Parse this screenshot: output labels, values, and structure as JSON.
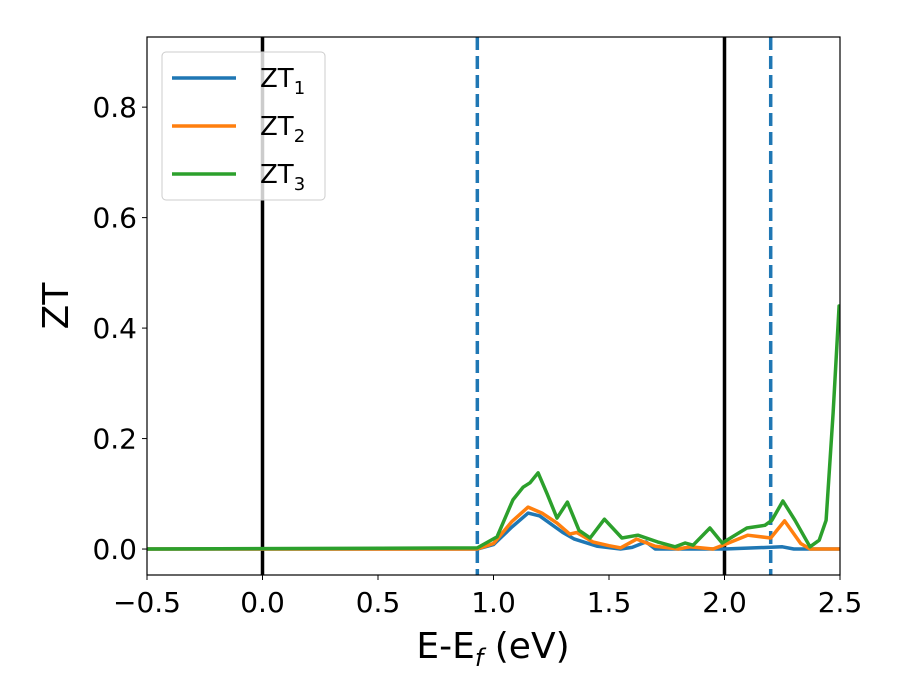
{
  "chart_data": {
    "type": "line",
    "title": "",
    "xlabel": {
      "base": "E-E",
      "sub": "f",
      "tail": " (eV)"
    },
    "ylabel": "ZT",
    "xlim": [
      -0.5,
      2.5
    ],
    "ylim": [
      -0.047,
      0.927
    ],
    "xticks": [
      -0.5,
      0.0,
      0.5,
      1.0,
      1.5,
      2.0,
      2.5
    ],
    "xtick_labels": [
      "−0.5",
      "0.0",
      "0.5",
      "1.0",
      "1.5",
      "2.0",
      "2.5"
    ],
    "yticks": [
      0.0,
      0.2,
      0.4,
      0.6,
      0.8
    ],
    "ytick_labels": [
      "0.0",
      "0.2",
      "0.4",
      "0.6",
      "0.8"
    ],
    "grid": false,
    "legend_position": "top-left",
    "vlines": [
      {
        "x": 0.0,
        "color": "#000000",
        "style": "solid"
      },
      {
        "x": 2.0,
        "color": "#000000",
        "style": "solid"
      },
      {
        "x": 0.93,
        "color": "#1f77b4",
        "style": "dashed"
      },
      {
        "x": 2.2,
        "color": "#1f77b4",
        "style": "dashed"
      }
    ],
    "series": [
      {
        "name": "ZT",
        "sub": "1",
        "color": "#1f77b4",
        "x": [
          -0.5,
          0.93,
          1.0,
          1.08,
          1.15,
          1.2,
          1.3,
          1.35,
          1.45,
          1.55,
          1.6,
          1.66,
          1.7,
          2.0,
          2.25,
          2.3,
          2.5
        ],
        "y": [
          0,
          0,
          0.008,
          0.04,
          0.065,
          0.06,
          0.03,
          0.018,
          0.005,
          0.0,
          0.003,
          0.013,
          0.0,
          0.0,
          0.004,
          0.0,
          0.0
        ]
      },
      {
        "name": "ZT",
        "sub": "2",
        "color": "#ff7f0e",
        "x": [
          -0.5,
          0.93,
          1.0,
          1.08,
          1.15,
          1.21,
          1.275,
          1.33,
          1.36,
          1.43,
          1.5,
          1.55,
          1.62,
          1.7,
          1.8,
          1.85,
          1.95,
          2.0,
          2.1,
          2.2,
          2.26,
          2.33,
          2.37,
          2.5
        ],
        "y": [
          0,
          0,
          0.01,
          0.05,
          0.076,
          0.065,
          0.047,
          0.027,
          0.03,
          0.013,
          0.006,
          0.002,
          0.018,
          0.005,
          0.0,
          0.004,
          0.0,
          0.008,
          0.025,
          0.02,
          0.051,
          0.01,
          0.0,
          0.0
        ]
      },
      {
        "name": "ZT",
        "sub": "3",
        "color": "#2ca02c",
        "x": [
          -0.5,
          0.93,
          1.015,
          1.084,
          1.128,
          1.158,
          1.193,
          1.232,
          1.275,
          1.32,
          1.37,
          1.418,
          1.48,
          1.556,
          1.625,
          1.71,
          1.786,
          1.83,
          1.864,
          1.937,
          1.99,
          2.01,
          2.097,
          2.175,
          2.205,
          2.253,
          2.305,
          2.37,
          2.41,
          2.44,
          2.47,
          2.496
        ],
        "y": [
          0,
          0.002,
          0.022,
          0.089,
          0.112,
          0.12,
          0.138,
          0.1,
          0.056,
          0.085,
          0.034,
          0.02,
          0.054,
          0.02,
          0.025,
          0.013,
          0.004,
          0.011,
          0.007,
          0.038,
          0.011,
          0.016,
          0.038,
          0.043,
          0.052,
          0.087,
          0.052,
          0.004,
          0.016,
          0.052,
          0.246,
          0.44
        ]
      }
    ]
  }
}
